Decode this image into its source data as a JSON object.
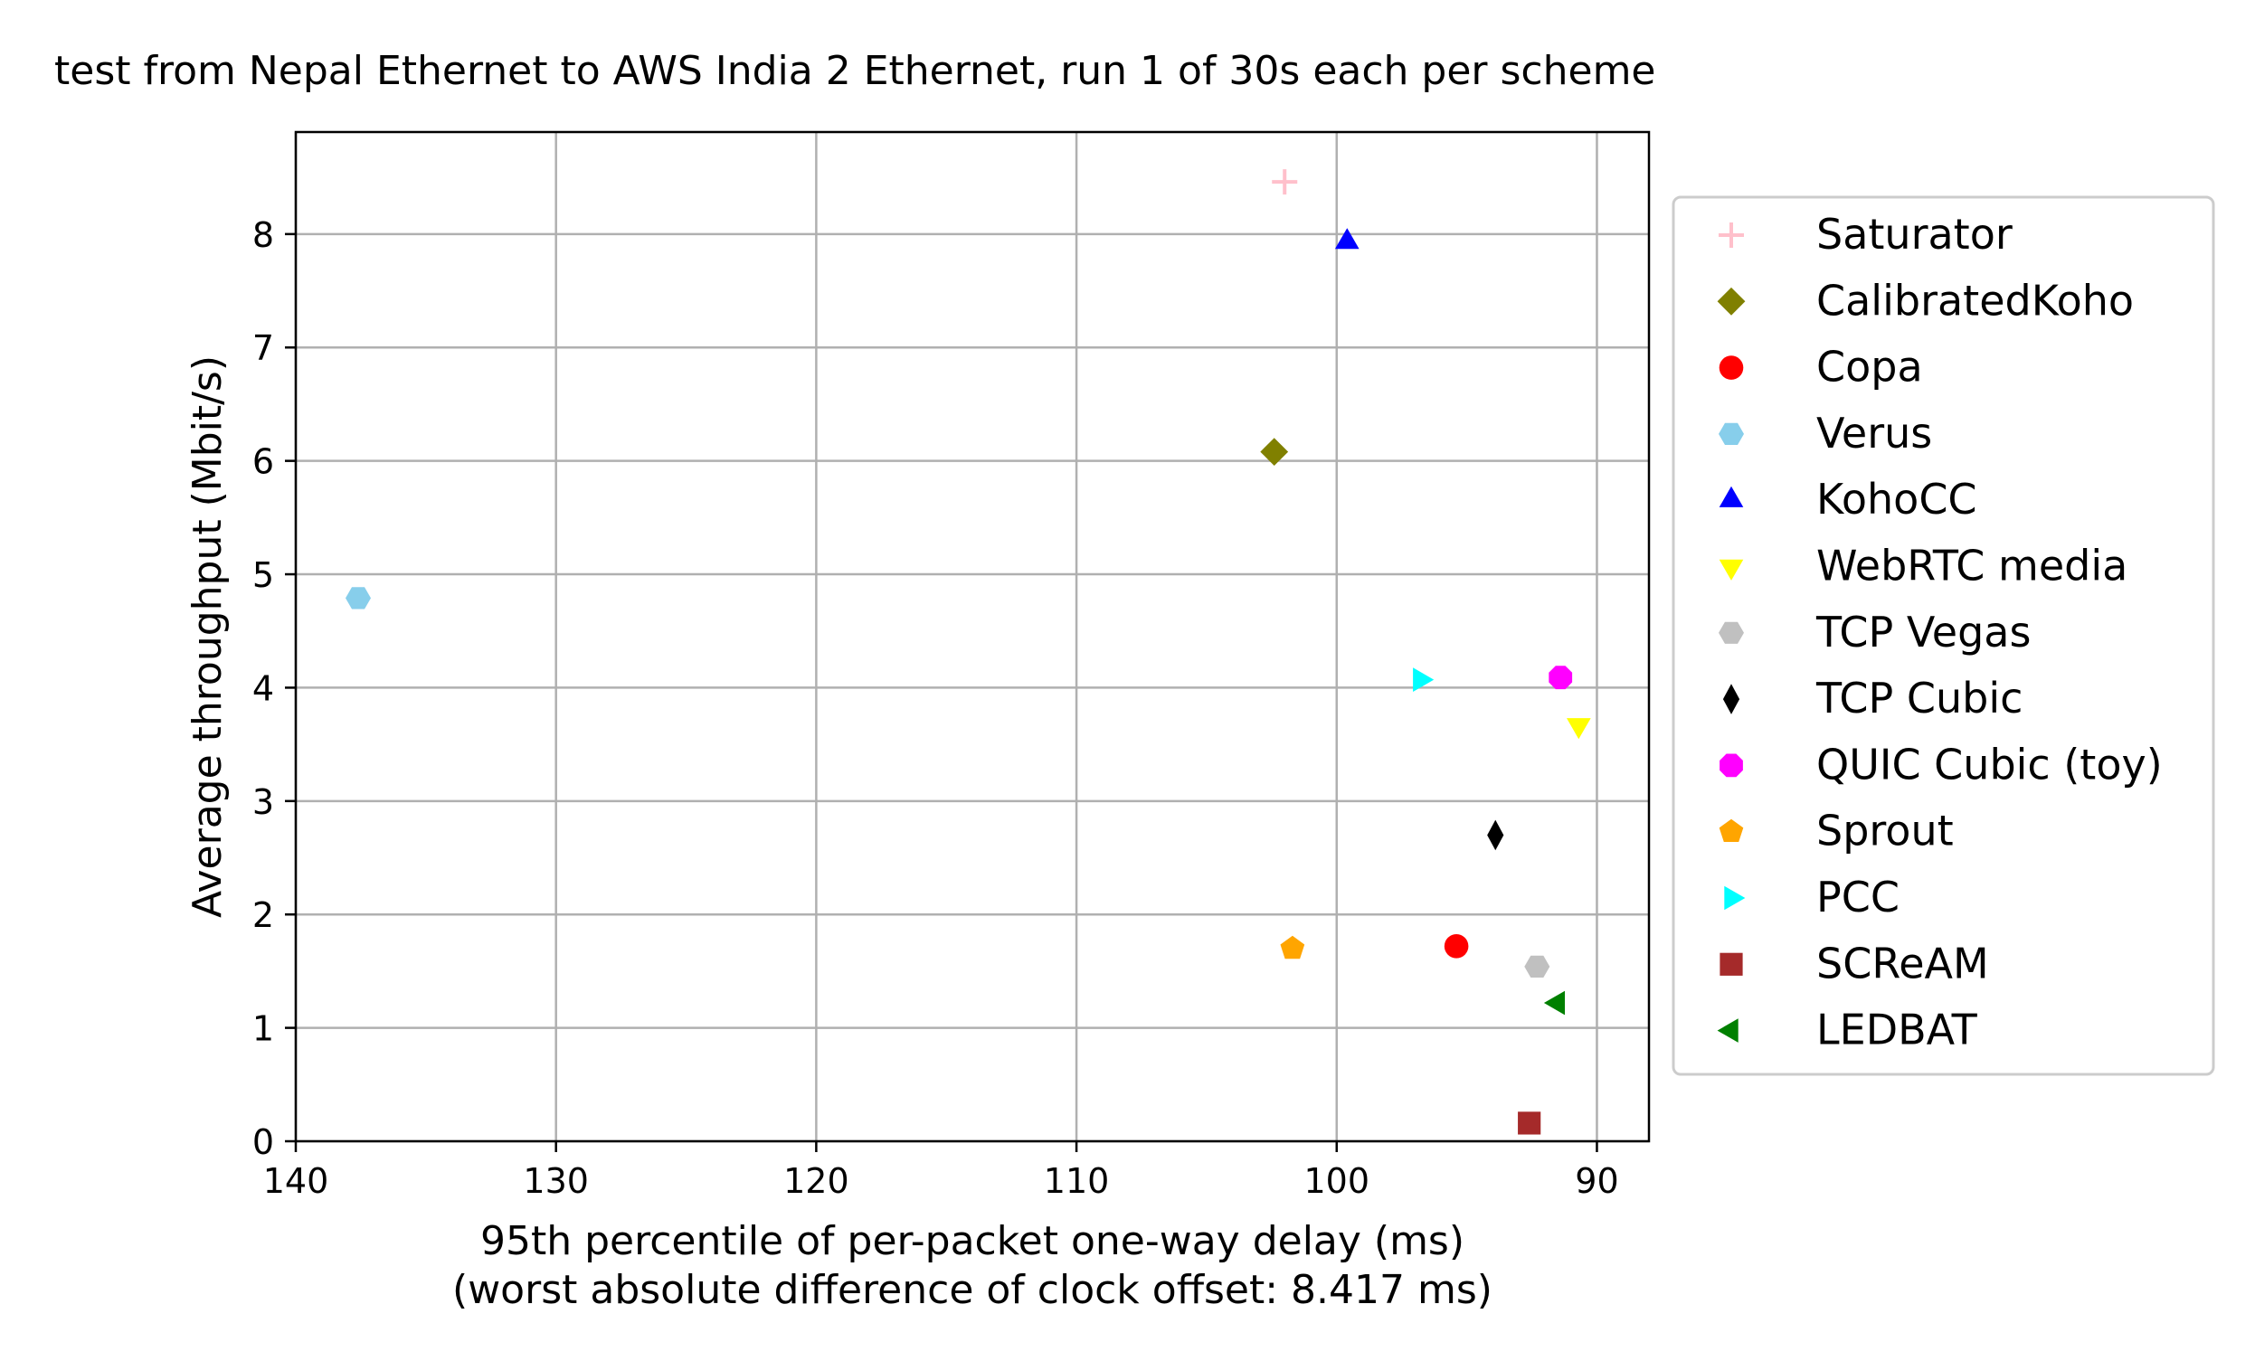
{
  "chart_data": {
    "type": "scatter",
    "title": "test from Nepal Ethernet to AWS India 2 Ethernet, run 1 of 30s each per scheme",
    "xlabel_line1": "95th percentile of per-packet one-way delay (ms)",
    "xlabel_line2": "(worst absolute difference of clock offset: 8.417 ms)",
    "ylabel": "Average throughput (Mbit/s)",
    "x_axis": {
      "inverted": true,
      "xlim": [
        140,
        88
      ],
      "ticks": [
        140,
        130,
        120,
        110,
        100,
        90
      ]
    },
    "y_axis": {
      "ylim": [
        0,
        8.9
      ],
      "ticks": [
        0,
        1,
        2,
        3,
        4,
        5,
        6,
        7,
        8
      ]
    },
    "grid": true,
    "legend_position": "outside-right",
    "series": [
      {
        "name": "Saturator",
        "marker": "plus",
        "color": "#ffc0cb",
        "x": 102.0,
        "y": 8.46
      },
      {
        "name": "CalibratedKoho",
        "marker": "diamond",
        "color": "#808000",
        "x": 102.4,
        "y": 6.08
      },
      {
        "name": "Copa",
        "marker": "circle",
        "color": "#ff0000",
        "x": 95.4,
        "y": 1.72
      },
      {
        "name": "Verus",
        "marker": "hexagon",
        "color": "#87ceeb",
        "x": 137.6,
        "y": 4.79
      },
      {
        "name": "KohoCC",
        "marker": "triangle-up",
        "color": "#0000ff",
        "x": 99.6,
        "y": 7.93
      },
      {
        "name": "WebRTC media",
        "marker": "triangle-down",
        "color": "#ffff00",
        "x": 90.7,
        "y": 3.67
      },
      {
        "name": "TCP Vegas",
        "marker": "hexagon",
        "color": "#c0c0c0",
        "x": 92.3,
        "y": 1.54
      },
      {
        "name": "TCP Cubic",
        "marker": "thin-diamond",
        "color": "#000000",
        "x": 93.9,
        "y": 2.7
      },
      {
        "name": "QUIC Cubic (toy)",
        "marker": "octagon",
        "color": "#ff00ff",
        "x": 91.4,
        "y": 4.09
      },
      {
        "name": "Sprout",
        "marker": "pentagon",
        "color": "#ffa500",
        "x": 101.7,
        "y": 1.7
      },
      {
        "name": "PCC",
        "marker": "triangle-right",
        "color": "#00ffff",
        "x": 96.8,
        "y": 4.07
      },
      {
        "name": "SCReAM",
        "marker": "square",
        "color": "#a52a2a",
        "x": 92.6,
        "y": 0.16
      },
      {
        "name": "LEDBAT",
        "marker": "triangle-left",
        "color": "#008000",
        "x": 91.5,
        "y": 1.22
      }
    ]
  }
}
